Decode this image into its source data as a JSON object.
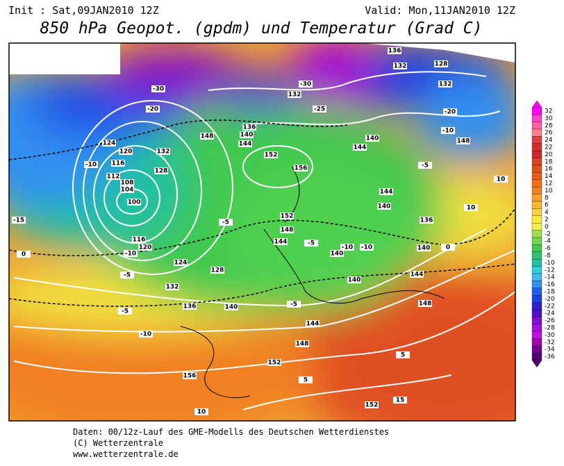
{
  "header": {
    "init": "Init : Sat,09JAN2010 12Z",
    "valid": "Valid: Mon,11JAN2010 12Z",
    "title": "850 hPa Geopot. (gpdm) und Temperatur (Grad C)"
  },
  "map": {
    "geopotential_labels": [
      100,
      104,
      108,
      112,
      116,
      120,
      124,
      128,
      132,
      136,
      140,
      144,
      148,
      152,
      156,
      152,
      148,
      144,
      140,
      136,
      132,
      128,
      124,
      120,
      116,
      144,
      148,
      152,
      156,
      152,
      148,
      144,
      140,
      136,
      140,
      144,
      148,
      132,
      128,
      136,
      132,
      140,
      144,
      132,
      140,
      140
    ],
    "temperature_labels": [
      -30,
      -20,
      -10,
      -15,
      -10,
      -5,
      0,
      -5,
      -10,
      -5,
      -5,
      -10,
      -10,
      -5,
      -10,
      -20,
      -5,
      0,
      10,
      10,
      5,
      15,
      10,
      -25,
      -30,
      5
    ]
  },
  "legend": {
    "labels": [
      32,
      30,
      28,
      26,
      24,
      22,
      20,
      18,
      16,
      14,
      12,
      10,
      8,
      6,
      4,
      2,
      0,
      -2,
      -4,
      -6,
      -8,
      -10,
      -12,
      -14,
      -16,
      -18,
      -20,
      -22,
      -24,
      -26,
      -28,
      -30,
      -32,
      -34,
      -36
    ],
    "colors": [
      "#ff00ff",
      "#ff40d0",
      "#ff60a0",
      "#ff8090",
      "#e04040",
      "#d03030",
      "#c82828",
      "#d84020",
      "#e05018",
      "#e86018",
      "#f07018",
      "#f08020",
      "#f8a028",
      "#f8b830",
      "#f8d040",
      "#f8e840",
      "#f0f050",
      "#a0e050",
      "#70d850",
      "#40c850",
      "#30c070",
      "#20c0a0",
      "#30d0d8",
      "#40b8f0",
      "#3090f0",
      "#2060e8",
      "#2040e0",
      "#3020d0",
      "#5010c8",
      "#8010d0",
      "#a010d8",
      "#c010e0",
      "#a000b0",
      "#700090",
      "#500070"
    ]
  },
  "footer": {
    "line1": "Daten: 00/12z-Lauf des GME-Modells des Deutschen Wetterdienstes",
    "line2": "(C) Wetterzentrale",
    "line3": "www.wetterzentrale.de"
  }
}
